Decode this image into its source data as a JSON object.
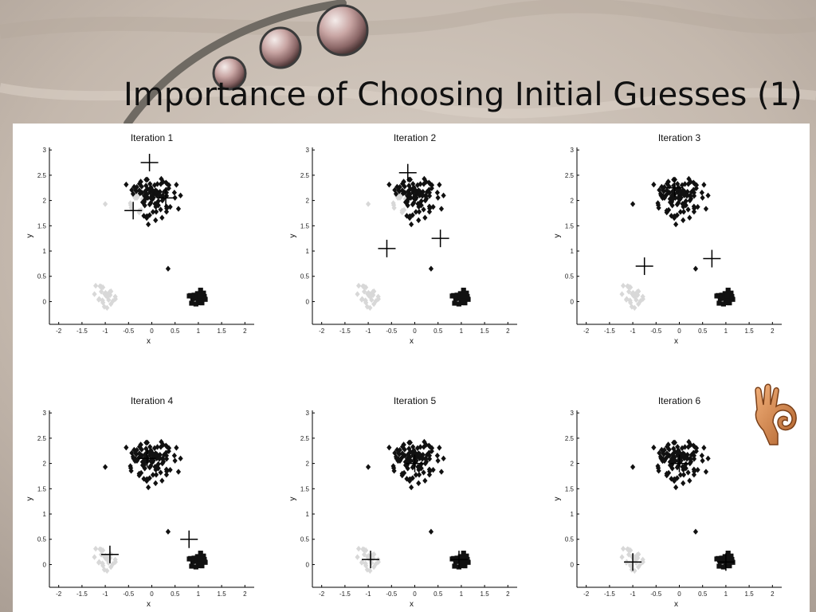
{
  "slide": {
    "title": "Importance of Choosing Initial Guesses (1)"
  },
  "icons": {
    "decoration": "pearl-spheres-icon",
    "approval": "ok-hand-icon"
  },
  "colors": {
    "cluster_light": "#d8d8d8",
    "cluster_dark": "#111111",
    "centroid": "#000000"
  },
  "chart_data": [
    {
      "type": "scatter",
      "title": "Iteration 1",
      "xlabel": "x",
      "ylabel": "y",
      "xlim": [
        -2.2,
        2.2
      ],
      "ylim": [
        -0.45,
        3.05
      ],
      "xticks": [
        "-2",
        "-1.5",
        "-1",
        "-0.5",
        "0",
        "0.5",
        "1",
        "1.5",
        "2"
      ],
      "yticks": [
        "0",
        "0.5",
        "1",
        "1.5",
        "2",
        "2.5",
        "3"
      ],
      "light_regions": [
        "lower-left",
        "upper-left"
      ],
      "centroids": [
        [
          -0.4,
          1.8
        ],
        [
          -0.05,
          2.75
        ],
        [
          0.3,
          2.05
        ]
      ]
    },
    {
      "type": "scatter",
      "title": "Iteration 2",
      "xlabel": "x",
      "ylabel": "y",
      "xlim": [
        -2.2,
        2.2
      ],
      "ylim": [
        -0.45,
        3.05
      ],
      "xticks": [
        "-2",
        "-1.5",
        "-1",
        "-0.5",
        "0",
        "0.5",
        "1",
        "1.5",
        "2"
      ],
      "yticks": [
        "0",
        "0.5",
        "1",
        "1.5",
        "2",
        "2.5",
        "3"
      ],
      "light_regions": [
        "lower-left",
        "upper-left"
      ],
      "centroids": [
        [
          -0.6,
          1.05
        ],
        [
          -0.15,
          2.55
        ],
        [
          0.55,
          1.25
        ]
      ]
    },
    {
      "type": "scatter",
      "title": "Iteration 3",
      "xlabel": "x",
      "ylabel": "y",
      "xlim": [
        -2.2,
        2.2
      ],
      "ylim": [
        -0.45,
        3.05
      ],
      "xticks": [
        "-2",
        "-1.5",
        "-1",
        "-0.5",
        "0",
        "0.5",
        "1",
        "1.5",
        "2"
      ],
      "yticks": [
        "0",
        "0.5",
        "1",
        "1.5",
        "2",
        "2.5",
        "3"
      ],
      "light_regions": [
        "lower-left"
      ],
      "centroids": [
        [
          -0.75,
          0.7
        ],
        [
          -0.1,
          2.25
        ],
        [
          0.7,
          0.85
        ]
      ]
    },
    {
      "type": "scatter",
      "title": "Iteration 4",
      "xlabel": "x",
      "ylabel": "y",
      "xlim": [
        -2.2,
        2.2
      ],
      "ylim": [
        -0.45,
        3.05
      ],
      "xticks": [
        "-2",
        "-1.5",
        "-1",
        "-0.5",
        "0",
        "0.5",
        "1",
        "1.5",
        "2"
      ],
      "yticks": [
        "0",
        "0.5",
        "1",
        "1.5",
        "2",
        "2.5",
        "3"
      ],
      "light_regions": [
        "lower-left"
      ],
      "centroids": [
        [
          -0.9,
          0.2
        ],
        [
          -0.1,
          2.1
        ],
        [
          0.8,
          0.5
        ]
      ]
    },
    {
      "type": "scatter",
      "title": "Iteration 5",
      "xlabel": "x",
      "ylabel": "y",
      "xlim": [
        -2.2,
        2.2
      ],
      "ylim": [
        -0.45,
        3.05
      ],
      "xticks": [
        "-2",
        "-1.5",
        "-1",
        "-0.5",
        "0",
        "0.5",
        "1",
        "1.5",
        "2"
      ],
      "yticks": [
        "0",
        "0.5",
        "1",
        "1.5",
        "2",
        "2.5",
        "3"
      ],
      "light_regions": [
        "lower-left"
      ],
      "centroids": [
        [
          -0.95,
          0.1
        ],
        [
          0.0,
          2.0
        ],
        [
          0.95,
          0.1
        ]
      ]
    },
    {
      "type": "scatter",
      "title": "Iteration 6",
      "xlabel": "x",
      "ylabel": "y",
      "xlim": [
        -2.2,
        2.2
      ],
      "ylim": [
        -0.45,
        3.05
      ],
      "xticks": [
        "-2",
        "-1.5",
        "-1",
        "-0.5",
        "0",
        "0.5",
        "1",
        "1.5",
        "2"
      ],
      "yticks": [
        "0",
        "0.5",
        "1",
        "1.5",
        "2",
        "2.5",
        "3"
      ],
      "light_regions": [
        "lower-left"
      ],
      "centroids": [
        [
          -1.0,
          0.05
        ],
        [
          0.0,
          2.0
        ],
        [
          1.0,
          0.05
        ]
      ]
    }
  ]
}
